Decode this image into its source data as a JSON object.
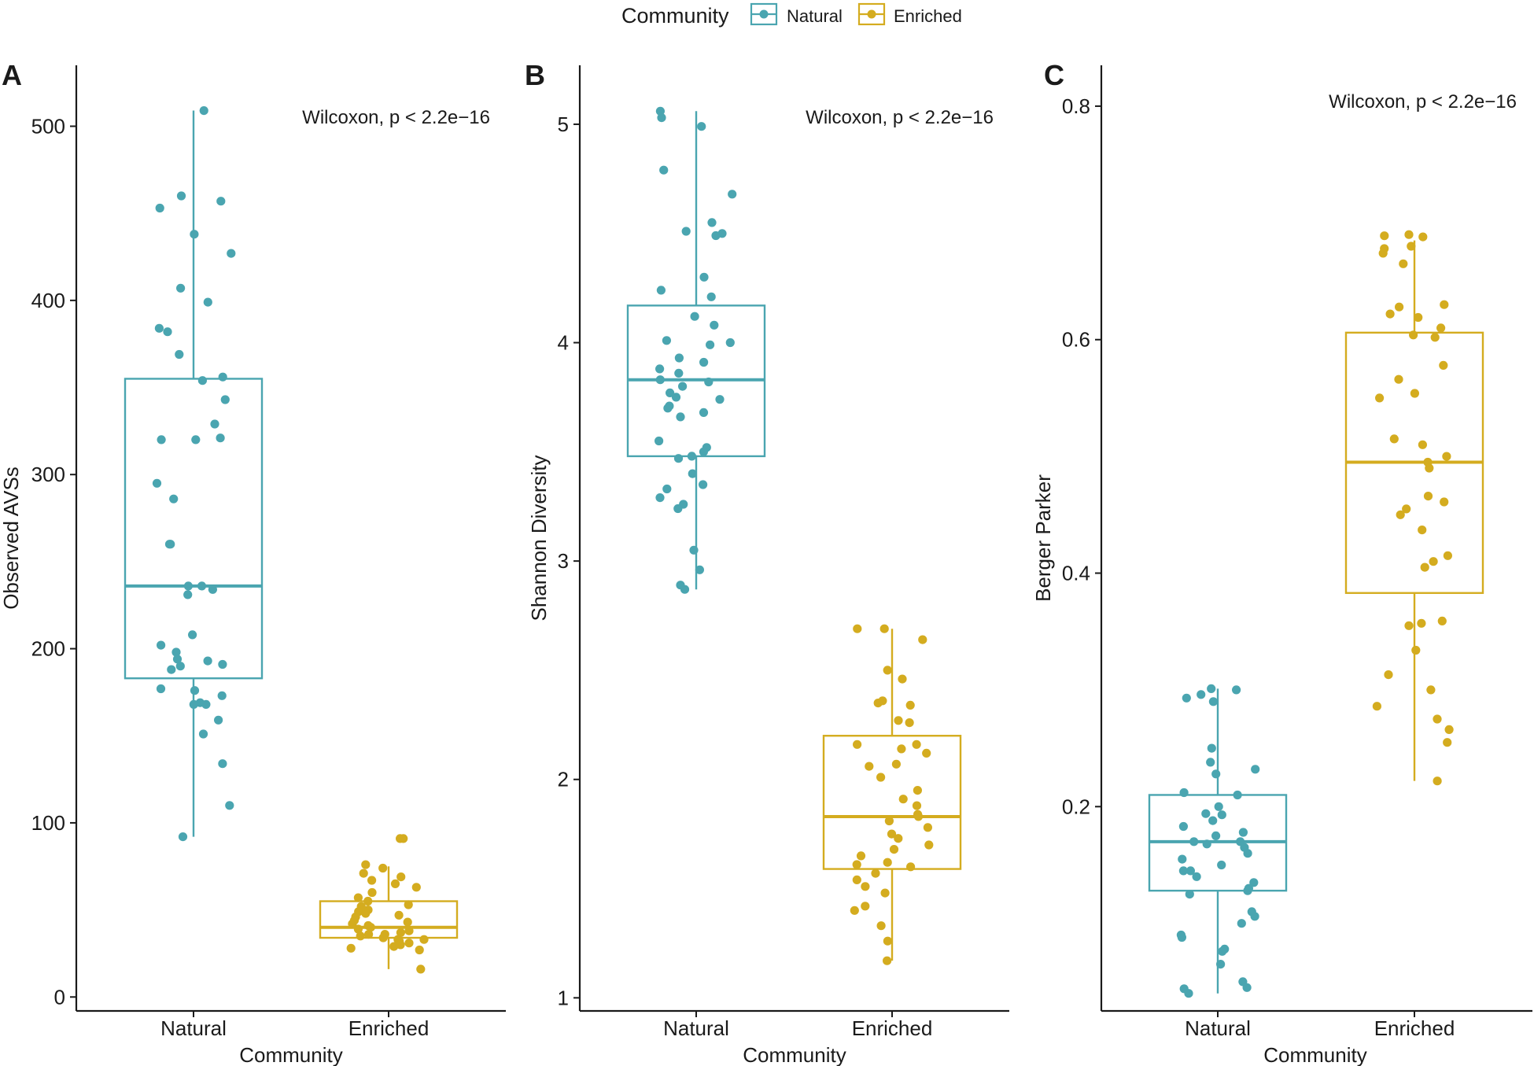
{
  "legend": {
    "title": "Community",
    "entries": [
      {
        "label": "Natural",
        "color": "#4aa5b0"
      },
      {
        "label": "Enriched",
        "color": "#d4ac1f"
      }
    ]
  },
  "chart_data": [
    {
      "type": "boxplot",
      "panel": "A",
      "title": "",
      "xlabel": "Community",
      "ylabel": "Observed AVSs",
      "annotation": "Wilcoxon, p < 2.2e−16",
      "categories": [
        "Natural",
        "Enriched"
      ],
      "ylim": [
        -8,
        535
      ],
      "yticks": [
        0,
        100,
        200,
        300,
        400,
        500
      ],
      "ytick_labels": [
        "0",
        "100",
        "200",
        "300",
        "400",
        "500"
      ],
      "boxes": [
        {
          "category": "Natural",
          "color": "#4aa5b0",
          "min": 92,
          "q1": 183,
          "median": 236,
          "q3": 355,
          "max": 509,
          "points": [
            509,
            460,
            457,
            453,
            438,
            427,
            407,
            399,
            384,
            382,
            369,
            356,
            354,
            343,
            329,
            321,
            320,
            320,
            295,
            286,
            260,
            260,
            236,
            236,
            234,
            231,
            208,
            202,
            198,
            194,
            193,
            191,
            190,
            188,
            177,
            176,
            173,
            169,
            168,
            168,
            159,
            151,
            134,
            110,
            92
          ]
        },
        {
          "category": "Enriched",
          "color": "#d4ac1f",
          "min": 16,
          "q1": 34,
          "median": 40,
          "q3": 55,
          "max": 75,
          "points": [
            91,
            91,
            76,
            74,
            71,
            69,
            67,
            65,
            63,
            60,
            57,
            55,
            53,
            52,
            50,
            49,
            48,
            47,
            46,
            44,
            43,
            42,
            41,
            40,
            39,
            38,
            37,
            36,
            36,
            35,
            34,
            33,
            33,
            32,
            31,
            30,
            29,
            28,
            27,
            16
          ]
        }
      ]
    },
    {
      "type": "boxplot",
      "panel": "B",
      "title": "",
      "xlabel": "Community",
      "ylabel": "Shannon Diversity",
      "annotation": "Wilcoxon, p < 2.2e−16",
      "categories": [
        "Natural",
        "Enriched"
      ],
      "ylim": [
        0.94,
        5.27
      ],
      "yticks": [
        1,
        2,
        3,
        4,
        5
      ],
      "ytick_labels": [
        "1",
        "2",
        "3",
        "4",
        "5"
      ],
      "boxes": [
        {
          "category": "Natural",
          "color": "#4aa5b0",
          "min": 2.87,
          "q1": 3.48,
          "median": 3.83,
          "q3": 4.17,
          "max": 5.06,
          "points": [
            5.06,
            5.03,
            4.99,
            4.79,
            4.68,
            4.55,
            4.51,
            4.5,
            4.49,
            4.3,
            4.24,
            4.21,
            4.12,
            4.08,
            4.01,
            4.0,
            3.99,
            3.93,
            3.91,
            3.88,
            3.86,
            3.83,
            3.82,
            3.8,
            3.77,
            3.75,
            3.74,
            3.71,
            3.7,
            3.68,
            3.66,
            3.55,
            3.52,
            3.5,
            3.48,
            3.47,
            3.4,
            3.35,
            3.33,
            3.29,
            3.26,
            3.24,
            3.05,
            2.96,
            2.89,
            2.87
          ]
        },
        {
          "category": "Enriched",
          "color": "#d4ac1f",
          "min": 1.17,
          "q1": 1.59,
          "median": 1.83,
          "q3": 2.2,
          "max": 2.69,
          "points": [
            2.69,
            2.69,
            2.64,
            2.5,
            2.46,
            2.36,
            2.35,
            2.34,
            2.27,
            2.26,
            2.16,
            2.16,
            2.14,
            2.12,
            2.07,
            2.06,
            2.01,
            1.95,
            1.91,
            1.88,
            1.84,
            1.83,
            1.81,
            1.78,
            1.75,
            1.73,
            1.7,
            1.68,
            1.65,
            1.62,
            1.61,
            1.6,
            1.57,
            1.54,
            1.51,
            1.48,
            1.42,
            1.4,
            1.33,
            1.26,
            1.17
          ]
        }
      ]
    },
    {
      "type": "boxplot",
      "panel": "C",
      "title": "",
      "xlabel": "Community",
      "ylabel": "Berger Parker",
      "annotation": "Wilcoxon, p < 2.2e−16",
      "categories": [
        "Natural",
        "Enriched"
      ],
      "ylim": [
        0.025,
        0.835
      ],
      "yticks": [
        0.2,
        0.4,
        0.6,
        0.8
      ],
      "ytick_labels": [
        "0.2",
        "0.4",
        "0.6",
        "0.8"
      ],
      "boxes": [
        {
          "category": "Natural",
          "color": "#4aa5b0",
          "min": 0.04,
          "q1": 0.128,
          "median": 0.17,
          "q3": 0.21,
          "max": 0.301,
          "points": [
            0.301,
            0.3,
            0.296,
            0.293,
            0.29,
            0.25,
            0.238,
            0.232,
            0.228,
            0.212,
            0.21,
            0.2,
            0.194,
            0.193,
            0.188,
            0.183,
            0.178,
            0.175,
            0.17,
            0.17,
            0.168,
            0.165,
            0.16,
            0.155,
            0.15,
            0.145,
            0.145,
            0.14,
            0.135,
            0.13,
            0.128,
            0.125,
            0.11,
            0.106,
            0.1,
            0.09,
            0.088,
            0.078,
            0.076,
            0.065,
            0.05,
            0.045,
            0.044,
            0.04
          ]
        },
        {
          "category": "Enriched",
          "color": "#d4ac1f",
          "min": 0.222,
          "q1": 0.383,
          "median": 0.495,
          "q3": 0.606,
          "max": 0.685,
          "points": [
            0.69,
            0.689,
            0.688,
            0.68,
            0.678,
            0.674,
            0.665,
            0.63,
            0.628,
            0.622,
            0.619,
            0.61,
            0.604,
            0.602,
            0.578,
            0.566,
            0.554,
            0.55,
            0.515,
            0.51,
            0.5,
            0.495,
            0.49,
            0.466,
            0.461,
            0.455,
            0.45,
            0.437,
            0.415,
            0.41,
            0.405,
            0.359,
            0.357,
            0.355,
            0.334,
            0.313,
            0.3,
            0.286,
            0.275,
            0.266,
            0.255,
            0.222
          ]
        }
      ]
    }
  ]
}
